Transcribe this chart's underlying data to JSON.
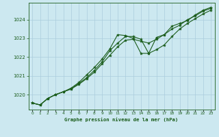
{
  "title": "Graphe pression niveau de la mer (hPa)",
  "bg_color": "#cce8f0",
  "grid_color": "#aaccdd",
  "line_color": "#1a5c1a",
  "marker_color": "#1a5c1a",
  "xlim": [
    -0.5,
    23.5
  ],
  "ylim": [
    1019.2,
    1024.9
  ],
  "yticks": [
    1020,
    1021,
    1022,
    1023,
    1024
  ],
  "xticks": [
    0,
    1,
    2,
    3,
    4,
    5,
    6,
    7,
    8,
    9,
    10,
    11,
    12,
    13,
    14,
    15,
    16,
    17,
    18,
    19,
    20,
    21,
    22,
    23
  ],
  "x": [
    0,
    1,
    2,
    3,
    4,
    5,
    6,
    7,
    8,
    9,
    10,
    11,
    12,
    13,
    14,
    15,
    16,
    17,
    18,
    19,
    20,
    21,
    22,
    23
  ],
  "series1_y": [
    1019.55,
    1019.45,
    1019.8,
    1020.0,
    1020.15,
    1020.3,
    1020.55,
    1020.85,
    1021.2,
    1021.65,
    1022.1,
    1022.55,
    1022.9,
    1022.95,
    1022.85,
    1022.75,
    1022.95,
    1023.2,
    1023.5,
    1023.7,
    1024.0,
    1024.2,
    1024.45,
    1024.6
  ],
  "series2_y": [
    1019.55,
    1019.45,
    1019.8,
    1020.0,
    1020.15,
    1020.35,
    1020.65,
    1021.05,
    1021.45,
    1021.9,
    1022.45,
    1023.2,
    1023.15,
    1023.0,
    1022.2,
    1022.2,
    1023.05,
    1023.2,
    1023.65,
    1023.8,
    1023.95,
    1024.25,
    1024.5,
    1024.65
  ],
  "series3_y": [
    1019.55,
    1019.45,
    1019.8,
    1020.0,
    1020.15,
    1020.3,
    1020.6,
    1020.9,
    1021.3,
    1021.75,
    1022.35,
    1022.75,
    1023.1,
    1023.1,
    1022.95,
    1022.2,
    1022.4,
    1022.65,
    1023.1,
    1023.5,
    1023.8,
    1024.05,
    1024.3,
    1024.5
  ]
}
